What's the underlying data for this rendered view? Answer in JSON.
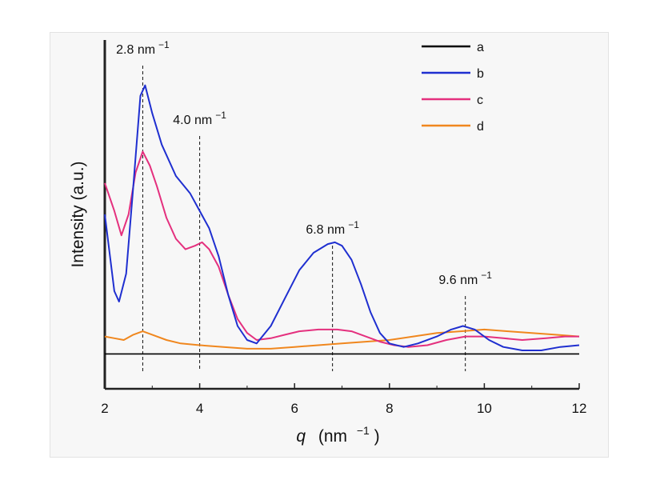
{
  "chart_data": {
    "type": "line",
    "xlabel_symbol": "q",
    "xlabel_unit": "(nm",
    "xlabel_sup": "−1",
    "xlabel_close": ")",
    "ylabel": "Intensity (a.u.)",
    "xlim": [
      2,
      12
    ],
    "ylim": [
      0,
      100
    ],
    "x_ticks": [
      2,
      4,
      6,
      8,
      10,
      12
    ],
    "x_tick_labels": [
      "2",
      "4",
      "6",
      "8",
      "10",
      "12"
    ],
    "y_ticks_shown": false,
    "grid": false,
    "legend_position": "top-right",
    "colors": {
      "a": "#000000",
      "b": "#1f2fd0",
      "c": "#e4307e",
      "d": "#f0871e"
    },
    "annotations": [
      {
        "x": 2.8,
        "label": "2.8 nm",
        "sup": "−1"
      },
      {
        "x": 4.0,
        "label": "4.0 nm",
        "sup": "−1"
      },
      {
        "x": 6.8,
        "label": "6.8 nm",
        "sup": "−1"
      },
      {
        "x": 9.6,
        "label": "9.6 nm",
        "sup": "−1"
      }
    ],
    "series": [
      {
        "name": "a",
        "points": [
          [
            2.0,
            10
          ],
          [
            4.0,
            10
          ],
          [
            6.0,
            10
          ],
          [
            8.0,
            10
          ],
          [
            10.0,
            10
          ],
          [
            12.0,
            10
          ]
        ]
      },
      {
        "name": "b",
        "points": [
          [
            2.0,
            50
          ],
          [
            2.2,
            28
          ],
          [
            2.3,
            25
          ],
          [
            2.45,
            33
          ],
          [
            2.6,
            58
          ],
          [
            2.75,
            84
          ],
          [
            2.85,
            87
          ],
          [
            3.0,
            79
          ],
          [
            3.2,
            70
          ],
          [
            3.5,
            61
          ],
          [
            3.8,
            56
          ],
          [
            4.0,
            51
          ],
          [
            4.2,
            46
          ],
          [
            4.4,
            38
          ],
          [
            4.6,
            27
          ],
          [
            4.8,
            18
          ],
          [
            5.0,
            14
          ],
          [
            5.2,
            13
          ],
          [
            5.5,
            18
          ],
          [
            5.8,
            26
          ],
          [
            6.1,
            34
          ],
          [
            6.4,
            39
          ],
          [
            6.7,
            41.5
          ],
          [
            6.85,
            42
          ],
          [
            7.0,
            41
          ],
          [
            7.2,
            37
          ],
          [
            7.4,
            30
          ],
          [
            7.6,
            22
          ],
          [
            7.8,
            16
          ],
          [
            8.0,
            13
          ],
          [
            8.3,
            12
          ],
          [
            8.6,
            13
          ],
          [
            9.0,
            15
          ],
          [
            9.3,
            17
          ],
          [
            9.55,
            18
          ],
          [
            9.8,
            17
          ],
          [
            10.1,
            14
          ],
          [
            10.4,
            12
          ],
          [
            10.8,
            11
          ],
          [
            11.2,
            11
          ],
          [
            11.6,
            12
          ],
          [
            12.0,
            12.5
          ]
        ]
      },
      {
        "name": "c",
        "points": [
          [
            2.0,
            59
          ],
          [
            2.2,
            51
          ],
          [
            2.35,
            44
          ],
          [
            2.5,
            50
          ],
          [
            2.65,
            62
          ],
          [
            2.8,
            68
          ],
          [
            2.95,
            64
          ],
          [
            3.1,
            58
          ],
          [
            3.3,
            49
          ],
          [
            3.5,
            43
          ],
          [
            3.7,
            40
          ],
          [
            3.9,
            41
          ],
          [
            4.05,
            42
          ],
          [
            4.2,
            40
          ],
          [
            4.4,
            35
          ],
          [
            4.6,
            27
          ],
          [
            4.8,
            20
          ],
          [
            5.0,
            16
          ],
          [
            5.2,
            14
          ],
          [
            5.5,
            14.5
          ],
          [
            5.8,
            15.5
          ],
          [
            6.1,
            16.5
          ],
          [
            6.5,
            17
          ],
          [
            6.9,
            17
          ],
          [
            7.2,
            16.5
          ],
          [
            7.5,
            15
          ],
          [
            7.8,
            13.5
          ],
          [
            8.1,
            12.5
          ],
          [
            8.4,
            12
          ],
          [
            8.8,
            12.5
          ],
          [
            9.2,
            14
          ],
          [
            9.6,
            15
          ],
          [
            10.0,
            15
          ],
          [
            10.4,
            14.5
          ],
          [
            10.8,
            14
          ],
          [
            11.3,
            14.5
          ],
          [
            11.7,
            15
          ],
          [
            12.0,
            15
          ]
        ]
      },
      {
        "name": "d",
        "points": [
          [
            2.0,
            15
          ],
          [
            2.2,
            14.5
          ],
          [
            2.4,
            14
          ],
          [
            2.6,
            15.5
          ],
          [
            2.8,
            16.5
          ],
          [
            3.0,
            15.5
          ],
          [
            3.3,
            14
          ],
          [
            3.6,
            13
          ],
          [
            4.0,
            12.5
          ],
          [
            4.5,
            12
          ],
          [
            5.0,
            11.5
          ],
          [
            5.5,
            11.5
          ],
          [
            6.0,
            12
          ],
          [
            6.5,
            12.5
          ],
          [
            7.0,
            13
          ],
          [
            7.5,
            13.5
          ],
          [
            8.0,
            14
          ],
          [
            8.5,
            15
          ],
          [
            9.0,
            16
          ],
          [
            9.5,
            16.5
          ],
          [
            10.0,
            17
          ],
          [
            10.5,
            16.5
          ],
          [
            11.0,
            16
          ],
          [
            11.5,
            15.5
          ],
          [
            12.0,
            15
          ]
        ]
      }
    ]
  }
}
